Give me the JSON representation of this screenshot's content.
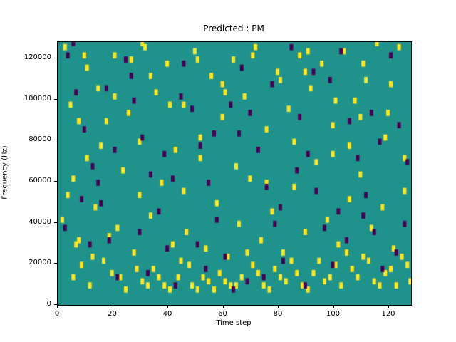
{
  "chart_data": {
    "type": "heatmap",
    "title": "Predicted : PM",
    "xlabel": "Time step",
    "ylabel": "Frequency (Hz)",
    "xlim": [
      0,
      128
    ],
    "ylim": [
      0,
      128000
    ],
    "x_ticks": [
      0,
      20,
      40,
      60,
      80,
      100,
      120
    ],
    "y_ticks": [
      0,
      20000,
      40000,
      60000,
      80000,
      100000,
      120000
    ],
    "grid": false,
    "legend": "none",
    "colors": {
      "background_mid": "#20928c",
      "high_yellow": "#fde725",
      "low_purple": "#440154"
    },
    "mark_time_width": 1,
    "mark_height_hz": 3000,
    "points_format": "[time_step, frequency_hz, value] value 1=high(yellow) 0=low(purple)",
    "points": [
      [
        2,
        124000,
        1
      ],
      [
        4,
        96000,
        1
      ],
      [
        3,
        52000,
        1
      ],
      [
        5,
        12000,
        1
      ],
      [
        7,
        30000,
        1
      ],
      [
        9,
        120000,
        1
      ],
      [
        10,
        70000,
        1
      ],
      [
        11,
        8000,
        1
      ],
      [
        13,
        46000,
        1
      ],
      [
        14,
        104000,
        1
      ],
      [
        16,
        20000,
        1
      ],
      [
        17,
        88000,
        1
      ],
      [
        19,
        14000,
        1
      ],
      [
        20,
        120000,
        1
      ],
      [
        21,
        36000,
        1
      ],
      [
        23,
        64000,
        1
      ],
      [
        24,
        6000,
        1
      ],
      [
        25,
        92000,
        1
      ],
      [
        26,
        118000,
        1
      ],
      [
        27,
        24000,
        1
      ],
      [
        29,
        78000,
        1
      ],
      [
        30,
        10000,
        1
      ],
      [
        31,
        124000,
        1
      ],
      [
        33,
        42000,
        1
      ],
      [
        34,
        16000,
        1
      ],
      [
        35,
        102000,
        1
      ],
      [
        37,
        58000,
        1
      ],
      [
        38,
        8000,
        1
      ],
      [
        39,
        116000,
        1
      ],
      [
        41,
        28000,
        1
      ],
      [
        42,
        74000,
        1
      ],
      [
        43,
        12000,
        1
      ],
      [
        45,
        96000,
        1
      ],
      [
        46,
        34000,
        1
      ],
      [
        47,
        18000,
        1
      ],
      [
        49,
        122000,
        1
      ],
      [
        50,
        6000,
        1
      ],
      [
        51,
        80000,
        1
      ],
      [
        53,
        26000,
        1
      ],
      [
        54,
        10000,
        1
      ],
      [
        55,
        110000,
        1
      ],
      [
        57,
        48000,
        1
      ],
      [
        58,
        14000,
        1
      ],
      [
        59,
        90000,
        1
      ],
      [
        61,
        22000,
        1
      ],
      [
        62,
        8000,
        1
      ],
      [
        63,
        118000,
        1
      ],
      [
        65,
        38000,
        1
      ],
      [
        66,
        12000,
        1
      ],
      [
        67,
        100000,
        1
      ],
      [
        69,
        60000,
        1
      ],
      [
        70,
        18000,
        1
      ],
      [
        71,
        124000,
        1
      ],
      [
        73,
        30000,
        1
      ],
      [
        74,
        8000,
        1
      ],
      [
        75,
        84000,
        1
      ],
      [
        77,
        44000,
        1
      ],
      [
        78,
        16000,
        1
      ],
      [
        79,
        112000,
        1
      ],
      [
        81,
        24000,
        1
      ],
      [
        82,
        10000,
        1
      ],
      [
        83,
        94000,
        1
      ],
      [
        85,
        56000,
        1
      ],
      [
        86,
        14000,
        1
      ],
      [
        87,
        120000,
        1
      ],
      [
        89,
        34000,
        1
      ],
      [
        90,
        6000,
        1
      ],
      [
        91,
        104000,
        1
      ],
      [
        93,
        68000,
        1
      ],
      [
        94,
        20000,
        1
      ],
      [
        95,
        116000,
        1
      ],
      [
        97,
        40000,
        1
      ],
      [
        98,
        12000,
        1
      ],
      [
        99,
        86000,
        1
      ],
      [
        101,
        28000,
        1
      ],
      [
        102,
        8000,
        1
      ],
      [
        103,
        122000,
        1
      ],
      [
        105,
        50000,
        1
      ],
      [
        106,
        16000,
        1
      ],
      [
        107,
        98000,
        1
      ],
      [
        109,
        62000,
        1
      ],
      [
        110,
        22000,
        1
      ],
      [
        111,
        108000,
        1
      ],
      [
        113,
        36000,
        1
      ],
      [
        114,
        10000,
        1
      ],
      [
        115,
        126000,
        1
      ],
      [
        117,
        46000,
        1
      ],
      [
        118,
        14000,
        1
      ],
      [
        119,
        92000,
        1
      ],
      [
        121,
        26000,
        1
      ],
      [
        122,
        8000,
        1
      ],
      [
        123,
        124000,
        1
      ],
      [
        125,
        54000,
        1
      ],
      [
        126,
        18000,
        1
      ],
      [
        127,
        10000,
        1
      ],
      [
        48,
        8000,
        1
      ],
      [
        52,
        12000,
        1
      ],
      [
        56,
        6000,
        1
      ],
      [
        60,
        10000,
        1
      ],
      [
        64,
        8000,
        1
      ],
      [
        44,
        20000,
        1
      ],
      [
        40,
        6000,
        1
      ],
      [
        36,
        12000,
        1
      ],
      [
        32,
        8000,
        1
      ],
      [
        28,
        16000,
        1
      ],
      [
        12,
        22000,
        1
      ],
      [
        8,
        18000,
        1
      ],
      [
        6,
        28000,
        1
      ],
      [
        18,
        32000,
        1
      ],
      [
        22,
        12000,
        1
      ],
      [
        100,
        18000,
        1
      ],
      [
        104,
        24000,
        1
      ],
      [
        108,
        12000,
        1
      ],
      [
        112,
        20000,
        1
      ],
      [
        116,
        8000,
        1
      ],
      [
        120,
        16000,
        1
      ],
      [
        124,
        22000,
        1
      ],
      [
        96,
        10000,
        1
      ],
      [
        92,
        14000,
        1
      ],
      [
        88,
        8000,
        1
      ],
      [
        84,
        20000,
        1
      ],
      [
        80,
        12000,
        1
      ],
      [
        76,
        6000,
        1
      ],
      [
        72,
        14000,
        1
      ],
      [
        68,
        24000,
        1
      ],
      [
        15,
        76000,
        1
      ],
      [
        51,
        70000,
        1
      ],
      [
        85,
        78000,
        1
      ],
      [
        29,
        52000,
        1
      ],
      [
        64,
        66000,
        1
      ],
      [
        99,
        72000,
        1
      ],
      [
        118,
        80000,
        1
      ],
      [
        7,
        88000,
        1
      ],
      [
        33,
        110000,
        1
      ],
      [
        59,
        106000,
        1
      ],
      [
        89,
        112000,
        1
      ],
      [
        109,
        90000,
        1
      ],
      [
        5,
        60000,
        1
      ],
      [
        45,
        54000,
        1
      ],
      [
        75,
        58000,
        1
      ],
      [
        105,
        76000,
        1
      ],
      [
        125,
        70000,
        1
      ],
      [
        20,
        100000,
        1
      ],
      [
        40,
        96000,
        1
      ],
      [
        60,
        102000,
        1
      ],
      [
        80,
        108000,
        1
      ],
      [
        100,
        98000,
        1
      ],
      [
        120,
        106000,
        1
      ],
      [
        10,
        114000,
        1
      ],
      [
        50,
        118000,
        1
      ],
      [
        90,
        122000,
        1
      ],
      [
        110,
        116000,
        1
      ],
      [
        30,
        126000,
        1
      ],
      [
        70,
        120000,
        1
      ],
      [
        1,
        40000,
        1
      ],
      [
        3,
        120000,
        0
      ],
      [
        6,
        102000,
        0
      ],
      [
        9,
        84000,
        0
      ],
      [
        12,
        66000,
        0
      ],
      [
        15,
        48000,
        0
      ],
      [
        18,
        30000,
        0
      ],
      [
        21,
        12000,
        0
      ],
      [
        24,
        118000,
        0
      ],
      [
        27,
        98000,
        0
      ],
      [
        30,
        80000,
        0
      ],
      [
        33,
        62000,
        0
      ],
      [
        36,
        44000,
        0
      ],
      [
        39,
        26000,
        0
      ],
      [
        42,
        8000,
        0
      ],
      [
        45,
        116000,
        0
      ],
      [
        48,
        94000,
        0
      ],
      [
        51,
        76000,
        0
      ],
      [
        54,
        58000,
        0
      ],
      [
        57,
        40000,
        0
      ],
      [
        60,
        22000,
        0
      ],
      [
        63,
        6000,
        0
      ],
      [
        66,
        114000,
        0
      ],
      [
        69,
        92000,
        0
      ],
      [
        72,
        74000,
        0
      ],
      [
        75,
        56000,
        0
      ],
      [
        78,
        38000,
        0
      ],
      [
        81,
        20000,
        0
      ],
      [
        84,
        124000,
        0
      ],
      [
        87,
        90000,
        0
      ],
      [
        90,
        72000,
        0
      ],
      [
        93,
        54000,
        0
      ],
      [
        96,
        36000,
        0
      ],
      [
        99,
        18000,
        0
      ],
      [
        102,
        122000,
        0
      ],
      [
        105,
        88000,
        0
      ],
      [
        108,
        70000,
        0
      ],
      [
        111,
        52000,
        0
      ],
      [
        114,
        34000,
        0
      ],
      [
        117,
        16000,
        0
      ],
      [
        120,
        120000,
        0
      ],
      [
        123,
        86000,
        0
      ],
      [
        126,
        68000,
        0
      ],
      [
        2,
        36000,
        0
      ],
      [
        14,
        58000,
        0
      ],
      [
        26,
        110000,
        0
      ],
      [
        38,
        72000,
        0
      ],
      [
        50,
        28000,
        0
      ],
      [
        62,
        96000,
        0
      ],
      [
        74,
        12000,
        0
      ],
      [
        86,
        64000,
        0
      ],
      [
        98,
        108000,
        0
      ],
      [
        110,
        42000,
        0
      ],
      [
        122,
        24000,
        0
      ],
      [
        8,
        50000,
        0
      ],
      [
        20,
        74000,
        0
      ],
      [
        32,
        14000,
        0
      ],
      [
        44,
        100000,
        0
      ],
      [
        56,
        82000,
        0
      ],
      [
        68,
        10000,
        0
      ],
      [
        80,
        46000,
        0
      ],
      [
        92,
        112000,
        0
      ],
      [
        104,
        30000,
        0
      ],
      [
        116,
        78000,
        0
      ],
      [
        5,
        126000,
        0
      ],
      [
        17,
        104000,
        0
      ],
      [
        29,
        34000,
        0
      ],
      [
        41,
        60000,
        0
      ],
      [
        53,
        16000,
        0
      ],
      [
        65,
        82000,
        0
      ],
      [
        77,
        106000,
        0
      ],
      [
        89,
        8000,
        0
      ],
      [
        101,
        44000,
        0
      ],
      [
        113,
        92000,
        0
      ],
      [
        125,
        38000,
        0
      ],
      [
        11,
        28000,
        0
      ]
    ]
  }
}
